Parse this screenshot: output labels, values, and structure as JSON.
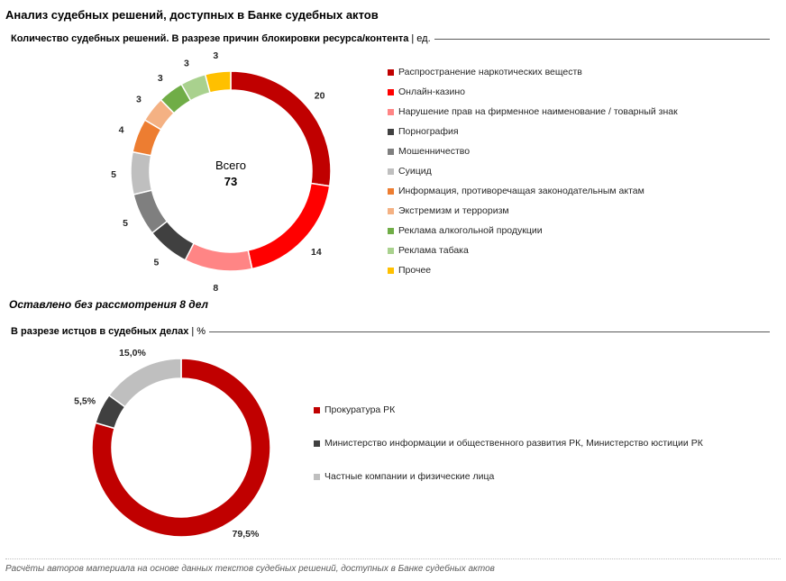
{
  "page_title": "Анализ судебных решений, доступных в Банке судебных актов",
  "note": "Оставлено без рассмотрения 8 дел",
  "footer": "Расчёты авторов материала на основе данных текстов судебных решений, доступных в Банке судебных актов",
  "chart_data": [
    {
      "type": "pie",
      "title": "Количество судебных решений. В разрезе причин блокировки ресурса/контента",
      "unit": "ед.",
      "center_label": "Всего",
      "total": "73",
      "legend_placement": "right",
      "categories": [
        "Распространение наркотических веществ",
        "Онлайн-казино",
        "Нарушение прав на фирменное наименование / товарный знак",
        "Порнография",
        "Мошенничество",
        "Суицид",
        "Информация, противоречащая законодательным актам",
        "Экстремизм и терроризм",
        "Реклама алкогольной продукции",
        "Реклама табака",
        "Прочее"
      ],
      "values": [
        20,
        14,
        8,
        5,
        5,
        5,
        4,
        3,
        3,
        3,
        3
      ],
      "labels": [
        "20",
        "14",
        "8",
        "5",
        "5",
        "5",
        "4",
        "3",
        "3",
        "3",
        "3"
      ],
      "colors": [
        "#C00000",
        "#FF0000",
        "#FF8585",
        "#404040",
        "#7F7F7F",
        "#BFBFBF",
        "#ED7D31",
        "#F4B183",
        "#70AD47",
        "#A9D18E",
        "#FFC000"
      ]
    },
    {
      "type": "pie",
      "title": "В разрезе истцов в судебных делах",
      "unit": "%",
      "legend_placement": "right",
      "categories": [
        "Прокуратура РК",
        "Министерство информации и общественного развития РК, Министерство юстиции РК",
        "Частные компании и физические лица"
      ],
      "values": [
        79.5,
        5.5,
        15.0
      ],
      "labels": [
        "79,5%",
        "5,5%",
        "15,0%"
      ],
      "colors": [
        "#C00000",
        "#404040",
        "#BFBFBF"
      ]
    }
  ]
}
